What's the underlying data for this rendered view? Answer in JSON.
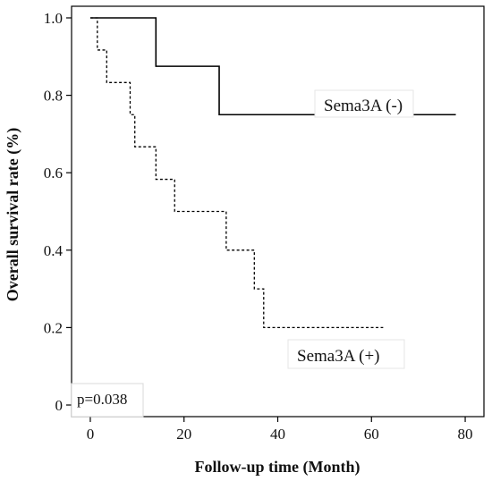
{
  "chart_data": {
    "type": "line",
    "chart_subtype": "kaplan-meier step",
    "title": "",
    "xlabel": "Follow-up time (Month)",
    "ylabel": "Overall survival rate (%)",
    "xlim": [
      -4,
      84
    ],
    "ylim": [
      -0.03,
      1.03
    ],
    "x_ticks": [
      0,
      20,
      40,
      60,
      80
    ],
    "x_tick_labels": [
      "0",
      "20",
      "40",
      "60",
      "80"
    ],
    "y_ticks": [
      0,
      0.2,
      0.4,
      0.6,
      0.8,
      1.0
    ],
    "y_tick_labels": [
      "0",
      "0.2",
      "0.4",
      "0.6",
      "0.8",
      "1.0"
    ],
    "grid": false,
    "annotation": "p=0.038",
    "series": [
      {
        "name": "Sema3A (-)",
        "line_style": "solid",
        "color": "#000000",
        "steps": [
          [
            0,
            1.0
          ],
          [
            14,
            0.875
          ],
          [
            27.5,
            0.75
          ],
          [
            78,
            0.75
          ]
        ]
      },
      {
        "name": "Sema3A (+)",
        "line_style": "dashed",
        "color": "#000000",
        "steps": [
          [
            0,
            1.0
          ],
          [
            1.5,
            0.917
          ],
          [
            3.5,
            0.833
          ],
          [
            8.5,
            0.75
          ],
          [
            9.5,
            0.667
          ],
          [
            14,
            0.583
          ],
          [
            18,
            0.5
          ],
          [
            29,
            0.4
          ],
          [
            35,
            0.3
          ],
          [
            37,
            0.2
          ],
          [
            62.5,
            0.2
          ]
        ]
      }
    ]
  }
}
